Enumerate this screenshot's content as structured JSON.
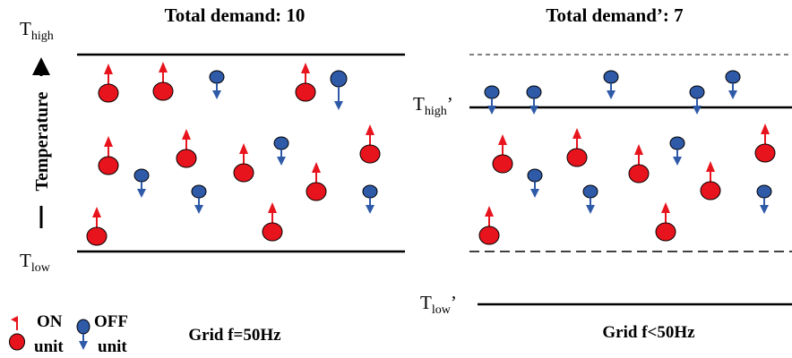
{
  "left_panel": {
    "title": "Total demand: 10",
    "t_high_label": "T",
    "t_high_sub": "high",
    "t_low_label": "T",
    "t_low_sub": "low",
    "axis_label": "Temperature",
    "grid_label": "Grid f=50Hz"
  },
  "right_panel": {
    "title": "Total demand’: 7",
    "t_high_label": "T",
    "t_high_sub": "high",
    "t_high_prime": "’",
    "t_low_label": "T",
    "t_low_sub": "low",
    "t_low_prime": "’",
    "grid_label": "Grid f<50Hz"
  },
  "legend": {
    "on_label": "ON",
    "off_label": "OFF",
    "unit_label": "unit"
  },
  "colors": {
    "on": "#e8141d",
    "off": "#2f5aa8",
    "line": "#000000"
  }
}
